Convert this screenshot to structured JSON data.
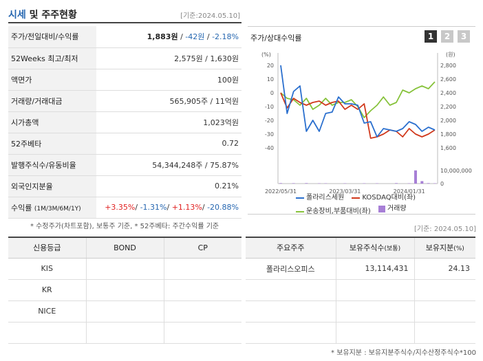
{
  "header": {
    "title_accent": "시세",
    "title_rest": " 및 주주현황",
    "date": "[기준:2024.05.10]"
  },
  "quote": {
    "r1": {
      "label": "주가/전일대비/수익률",
      "price": "1,883원",
      "sep1": " / ",
      "change": "-42원",
      "sep2": " / ",
      "rate": "-2.18%"
    },
    "r2": {
      "label": "52Weeks 최고/최저",
      "value": "2,575원 / 1,630원"
    },
    "r3": {
      "label": "액면가",
      "value": "100원"
    },
    "r4": {
      "label": "거래량/거래대금",
      "value": "565,905주 / 11억원"
    },
    "r5": {
      "label": "시가총액",
      "value": "1,023억원"
    },
    "r6": {
      "label": "52주베타",
      "value": "0.72"
    },
    "r7": {
      "label": "발행주식수/유동비율",
      "value": "54,344,248주 / 75.87%"
    },
    "r8": {
      "label": "외국인지분율",
      "value": "0.21%"
    },
    "r9": {
      "label": "수익률",
      "label_sub": "(1M/3M/6M/1Y)",
      "m1": "+3.35%",
      "s1": "/ ",
      "m3": "-1.31%",
      "s2": "/ ",
      "m6": "+1.13%",
      "s3": "/ ",
      "y1": "-20.88%"
    }
  },
  "note1": "* 수정주가(차트포함), 보통주 기준, * 52주베타: 주간수익률 기준",
  "chart": {
    "title": "주가/상대수익률",
    "tabs": [
      "1",
      "2",
      "3"
    ],
    "active_tab": 0,
    "right_unit": "(원)",
    "left_ticks": [
      "20",
      "10",
      "0",
      "-10",
      "-20",
      "-30",
      "-40"
    ],
    "right_ticks": [
      "2,800",
      "2,600",
      "2,400",
      "2,200",
      "2,000",
      "1,800",
      "1,600"
    ],
    "volume_tick_top": "10,000,000",
    "volume_tick_bottom": "0",
    "x_ticks": [
      "2022/05/31",
      "2023/03/31",
      "2024/01/31"
    ],
    "legend": [
      "폴라리스세원",
      "KOSDAQ대비(좌)",
      "운송장비,부품대비(좌)",
      "거래량"
    ],
    "colors": {
      "stock": "#2a6fce",
      "kosdaq": "#d0371a",
      "sector": "#86c23a",
      "volume": "#a77fd6"
    }
  },
  "chart_data": {
    "type": "line",
    "x": [
      "2022/05/31",
      "2022/06/30",
      "2022/07/31",
      "2022/08/31",
      "2022/09/30",
      "2022/10/31",
      "2022/11/30",
      "2022/12/31",
      "2023/01/31",
      "2023/02/28",
      "2023/03/31",
      "2023/04/30",
      "2023/05/31",
      "2023/06/30",
      "2023/07/31",
      "2023/08/31",
      "2023/09/30",
      "2023/10/31",
      "2023/11/30",
      "2023/12/31",
      "2024/01/31",
      "2024/02/29",
      "2024/03/31",
      "2024/04/30",
      "2024/05/10"
    ],
    "series": [
      {
        "name": "폴라리스세원",
        "axis": "left",
        "values": [
          20,
          -15,
          1,
          5,
          -28,
          -20,
          -28,
          -15,
          -14,
          -3,
          -8,
          -8,
          -9,
          -22,
          -21,
          -32,
          -26,
          -27,
          -28,
          -26,
          -21,
          -23,
          -28,
          -25,
          -27
        ]
      },
      {
        "name": "KOSDAQ대비(좌)",
        "axis": "left",
        "values": [
          0,
          -11,
          -4,
          -7,
          -9,
          -7,
          -6,
          -9,
          -7,
          -6,
          -12,
          -9,
          -12,
          -8,
          -33,
          -32,
          -30,
          -27,
          -28,
          -32,
          -26,
          -30,
          -32,
          -30,
          -27
        ]
      },
      {
        "name": "운송장비,부품대비(좌)",
        "axis": "left",
        "values": [
          0,
          -4,
          -5,
          -9,
          -4,
          -12,
          -9,
          -4,
          -9,
          -7,
          -7,
          -5,
          -10,
          -18,
          -13,
          -9,
          -3,
          -9,
          -7,
          2,
          0,
          3,
          5,
          3,
          8
        ]
      },
      {
        "name": "거래량",
        "axis": "volume",
        "values": [
          300000,
          0,
          250000,
          0,
          300000,
          0,
          200000,
          200000,
          0,
          0,
          200000,
          0,
          0,
          200000,
          0,
          200000,
          0,
          0,
          300000,
          0,
          200000,
          8000000,
          1500000,
          300000,
          200000
        ]
      }
    ],
    "ylim_left": [
      -40,
      20
    ],
    "ylim_right": [
      1600,
      2800
    ],
    "grid": false,
    "legend_position": "bottom"
  },
  "date2": "[기준: 2024.05.10]",
  "credit": {
    "headers": [
      "신용등급",
      "BOND",
      "CP"
    ],
    "rows": [
      [
        "KIS",
        "",
        ""
      ],
      [
        "KR",
        "",
        ""
      ],
      [
        "NICE",
        "",
        ""
      ],
      [
        "",
        "",
        ""
      ]
    ]
  },
  "holders": {
    "h1": "주요주주",
    "h2": "보유주식수",
    "h2_sub": "(보통)",
    "h3": "보유지분",
    "h3_sub": "(%)",
    "rows": [
      [
        "폴라리스오피스",
        "13,114,431",
        "24.13"
      ],
      [
        "",
        "",
        ""
      ],
      [
        "",
        "",
        ""
      ],
      [
        "",
        "",
        ""
      ]
    ]
  },
  "note2": "* 보유지분 : 보유지분주식수/지수산정주식수*100"
}
